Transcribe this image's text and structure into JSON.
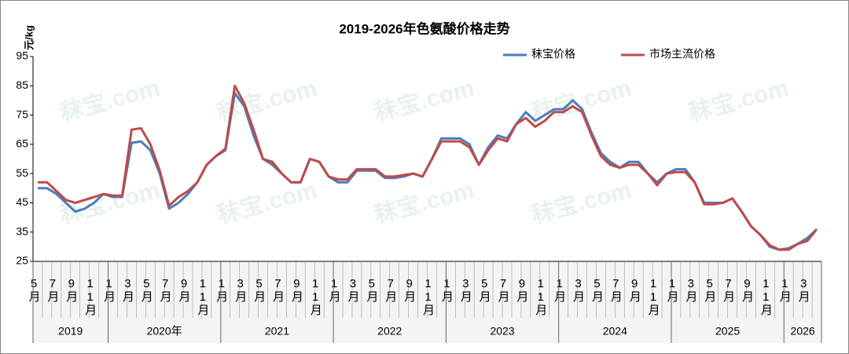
{
  "chart_data": {
    "type": "line",
    "title": "2019-2026年色氨酸价格走势",
    "y_label": "元/kg",
    "watermark": "秣宝.com",
    "categories": [
      "5月",
      null,
      "7月",
      null,
      "9月",
      null,
      "11月",
      null,
      "1月",
      null,
      "3月",
      null,
      "5月",
      null,
      "7月",
      null,
      "9月",
      null,
      "11月",
      null,
      "1月",
      null,
      "3月",
      null,
      "5月",
      null,
      "7月",
      null,
      "9月",
      null,
      "11月",
      null,
      "1月",
      null,
      "3月",
      null,
      "5月",
      null,
      "7月",
      null,
      "9月",
      null,
      "11月",
      null,
      "1月",
      null,
      "3月",
      null,
      "5月",
      null,
      "7月",
      null,
      "9月",
      null,
      "11月",
      null,
      "1月",
      null,
      "3月",
      null,
      "5月",
      null,
      "7月",
      null,
      "9月",
      null,
      "11月",
      null,
      "1月",
      null,
      "3月",
      null,
      "5月",
      null,
      "7月",
      null,
      "9月",
      null,
      "11月",
      null,
      "1月",
      null,
      "3月",
      null
    ],
    "x_groups": [
      "2019",
      "2020年",
      "2021",
      "2022",
      "2023",
      "2024",
      "2025",
      "2026"
    ],
    "series": [
      {
        "name": "秣宝价格",
        "color": "#4a7ebb",
        "values": [
          50,
          50,
          48,
          45,
          42,
          43,
          45,
          48,
          47,
          47,
          65.5,
          66,
          63,
          55,
          43,
          45,
          48,
          52,
          58,
          61,
          63,
          82.5,
          78,
          68,
          60,
          58,
          55,
          52,
          52,
          60,
          59,
          54,
          52,
          52,
          56,
          56,
          56,
          53.5,
          53.5,
          54,
          55,
          54,
          60,
          67,
          67,
          67,
          65,
          58,
          64,
          68,
          67,
          72,
          76,
          73,
          75,
          77,
          77,
          80,
          77,
          69,
          62,
          59,
          57,
          59,
          59,
          55,
          52,
          55,
          56.5,
          56.5,
          52,
          45,
          45,
          45,
          46.5,
          42,
          37,
          34,
          30,
          29,
          29.5,
          31,
          33,
          36
        ]
      },
      {
        "name": "市场主流价格",
        "color": "#be4b48",
        "values": [
          52,
          52,
          49,
          46,
          45,
          46,
          47,
          48,
          47.5,
          47.5,
          70,
          70.5,
          65,
          56,
          44,
          47,
          49,
          52,
          58,
          61,
          63.5,
          85,
          79,
          70,
          60,
          59,
          55,
          52,
          52,
          60,
          59,
          54,
          53,
          53,
          56.5,
          56.5,
          56.5,
          54,
          54,
          54.5,
          55,
          54,
          60,
          66,
          66,
          66,
          64,
          58,
          63,
          67,
          66,
          72,
          74,
          71,
          73,
          76,
          76,
          78,
          76,
          68,
          61,
          58,
          57,
          58,
          58,
          55,
          51,
          55,
          55.5,
          55.5,
          52,
          44.5,
          44.5,
          45,
          46.5,
          42,
          37,
          34,
          30.5,
          29,
          29,
          31,
          32,
          36
        ]
      }
    ],
    "ylim": [
      25,
      95
    ],
    "yticks": [
      25,
      35,
      45,
      55,
      65,
      75,
      85,
      95
    ],
    "grid": false,
    "legend": "top-right"
  }
}
